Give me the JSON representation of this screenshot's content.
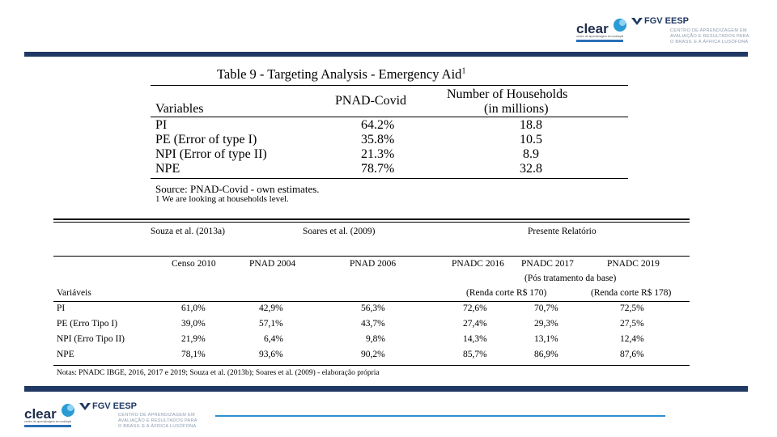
{
  "header_logo": {
    "clear": "clear",
    "clear_tag": "centro de aprendizagem em avaliação",
    "fgv": "FGV EESP",
    "lines": [
      "CENTRO DE APRENDIZAGEM EM",
      "AVALIAÇÃO E RESULTADOS PARA",
      "O BRASIL E A ÁFRICA LUSÓFONA"
    ]
  },
  "table1": {
    "title": "Table 9 - Targeting Analysis - Emergency Aid",
    "title_sup": "1",
    "col_var": "Variables",
    "col_pnad": "PNAD-Covid",
    "col_house_1": "Number of Households",
    "col_house_2": "(in millions)",
    "rows": [
      {
        "var": "PI",
        "pnad": "64.2%",
        "house": "18.8"
      },
      {
        "var": "PE (Error of type I)",
        "pnad": "35.8%",
        "house": "10.5"
      },
      {
        "var": "NPI (Error of type II)",
        "pnad": "21.3%",
        "house": "8.9"
      },
      {
        "var": "NPE",
        "pnad": "78.7%",
        "house": "32.8"
      }
    ],
    "source": "Source: PNAD-Covid - own estimates.",
    "note": "1 We are looking at households level."
  },
  "table2": {
    "group1": "Souza et al. (2013a)",
    "group2": "Soares et al. (2009)",
    "group3": "Presente Relatório",
    "cols": [
      "Censo 2010",
      "PNAD 2004",
      "PNAD 2006",
      "PNADC 2016",
      "PNADC 2017",
      "PNADC 2019"
    ],
    "sub1": "(Pós tratamento da base)",
    "var_label": "Variáveis",
    "sub2a": "(Renda corte R$ 170)",
    "sub2b": "(Renda corte R$ 178)",
    "rows": [
      {
        "var": "PI",
        "v": [
          "61,0%",
          "42,9%",
          "56,3%",
          "72,6%",
          "70,7%",
          "72,5%"
        ]
      },
      {
        "var": "PE (Erro Tipo I)",
        "v": [
          "39,0%",
          "57,1%",
          "43,7%",
          "27,4%",
          "29,3%",
          "27,5%"
        ]
      },
      {
        "var": "NPI (Erro Tipo II)",
        "v": [
          "21,9%",
          "6,4%",
          "9,8%",
          "14,3%",
          "13,1%",
          "12,4%"
        ]
      },
      {
        "var": "NPE",
        "v": [
          "78,1%",
          "93,6%",
          "90,2%",
          "85,7%",
          "86,9%",
          "87,6%"
        ]
      }
    ],
    "notes": "Notas: PNADC IBGE, 2016, 2017 e 2019; Souza et al. (2013b); Soares et al. (2009) - elaboração própria"
  },
  "footer_logo": {
    "clear": "clear",
    "clear_tag": "centro de aprendizagem em avaliação",
    "fgv": "FGV EESP",
    "lines": [
      "CENTRO DE APRENDIZAGEM EM",
      "AVALIAÇÃO E RESULTADOS PARA",
      "O BRASIL E A ÁFRICA LUSÓFONA"
    ]
  }
}
